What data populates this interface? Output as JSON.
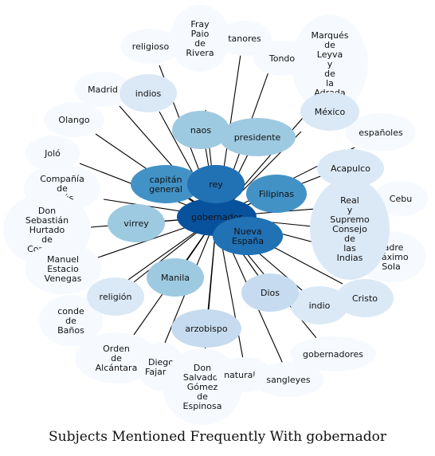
{
  "caption": "Subjects Mentioned Frequently With gobernador",
  "colors": {
    "tier0": "#f6faff",
    "tier1": "#dbe9f6",
    "tier2": "#c6dbef",
    "tier3": "#9ecae1",
    "tier4": "#4292c6",
    "tier5": "#2171b5",
    "tier6": "#08519c"
  },
  "center": "gobernador",
  "nodes": [
    {
      "id": "fray",
      "lines": [
        "Fray",
        "Paio",
        "de",
        "Rivera"
      ],
      "tier": 0
    },
    {
      "id": "tanores",
      "lines": [
        "tanores"
      ],
      "tier": 0
    },
    {
      "id": "religioso",
      "lines": [
        "religioso"
      ],
      "tier": 0
    },
    {
      "id": "marques",
      "lines": [
        "Marqués",
        "de",
        "Leyva",
        "y",
        "de",
        "la",
        "Adrada"
      ],
      "tier": 0
    },
    {
      "id": "tondo",
      "lines": [
        "Tondo"
      ],
      "tier": 0
    },
    {
      "id": "madrid",
      "lines": [
        "Madrid"
      ],
      "tier": 0
    },
    {
      "id": "indios",
      "lines": [
        "indios"
      ],
      "tier": 1
    },
    {
      "id": "mexico",
      "lines": [
        "México"
      ],
      "tier": 1
    },
    {
      "id": "espanoles",
      "lines": [
        "españoles"
      ],
      "tier": 0
    },
    {
      "id": "olango",
      "lines": [
        "Olango"
      ],
      "tier": 0
    },
    {
      "id": "naos",
      "lines": [
        "naos"
      ],
      "tier": 3
    },
    {
      "id": "presidente",
      "lines": [
        "presidente"
      ],
      "tier": 3
    },
    {
      "id": "jolo",
      "lines": [
        "Joló"
      ],
      "tier": 0
    },
    {
      "id": "acapulco",
      "lines": [
        "Acapulco"
      ],
      "tier": 1
    },
    {
      "id": "compania",
      "lines": [
        "Compañía",
        "de",
        "Jesús"
      ],
      "tier": 0
    },
    {
      "id": "capitan",
      "lines": [
        "capitán",
        "general"
      ],
      "tier": 4
    },
    {
      "id": "rey",
      "lines": [
        "rey"
      ],
      "tier": 5
    },
    {
      "id": "filipinas",
      "lines": [
        "Filipinas"
      ],
      "tier": 4
    },
    {
      "id": "cebu",
      "lines": [
        "Cebu"
      ],
      "tier": 0
    },
    {
      "id": "sebastian",
      "lines": [
        "Don",
        "Sebastián",
        "Hurtado",
        "de",
        "Corcuera"
      ],
      "tier": 0
    },
    {
      "id": "real",
      "lines": [
        "Real",
        "y",
        "Supremo",
        "Consejo",
        "de",
        "las",
        "Indias"
      ],
      "tier": 1
    },
    {
      "id": "virrey",
      "lines": [
        "virrey"
      ],
      "tier": 3
    },
    {
      "id": "nueva",
      "lines": [
        "Nueva",
        "España"
      ],
      "tier": 5
    },
    {
      "id": "padre",
      "lines": [
        "Padre",
        "Máximo",
        "Sola"
      ],
      "tier": 0
    },
    {
      "id": "manuel",
      "lines": [
        "Manuel",
        "Estacio",
        "Venegas"
      ],
      "tier": 0
    },
    {
      "id": "manila",
      "lines": [
        "Manila"
      ],
      "tier": 3
    },
    {
      "id": "religion",
      "lines": [
        "religión"
      ],
      "tier": 1
    },
    {
      "id": "dios",
      "lines": [
        "Dios"
      ],
      "tier": 2
    },
    {
      "id": "indio",
      "lines": [
        "indio"
      ],
      "tier": 1
    },
    {
      "id": "cristo",
      "lines": [
        "Cristo"
      ],
      "tier": 1
    },
    {
      "id": "conde",
      "lines": [
        "conde",
        "de",
        "Baños"
      ],
      "tier": 0
    },
    {
      "id": "arzobispo",
      "lines": [
        "arzobispo"
      ],
      "tier": 2
    },
    {
      "id": "gobernadores",
      "lines": [
        "gobernadores"
      ],
      "tier": 0
    },
    {
      "id": "orden",
      "lines": [
        "Orden",
        "de",
        "Alcántara"
      ],
      "tier": 0
    },
    {
      "id": "diego",
      "lines": [
        "Diego",
        "Fajardo"
      ],
      "tier": 0
    },
    {
      "id": "salvador",
      "lines": [
        "Don",
        "Salvador",
        "Gómez",
        "de",
        "Espinosa"
      ],
      "tier": 0
    },
    {
      "id": "naturales",
      "lines": [
        "naturales"
      ],
      "tier": 0
    },
    {
      "id": "sangleyes",
      "lines": [
        "sangleyes"
      ],
      "tier": 0
    }
  ]
}
